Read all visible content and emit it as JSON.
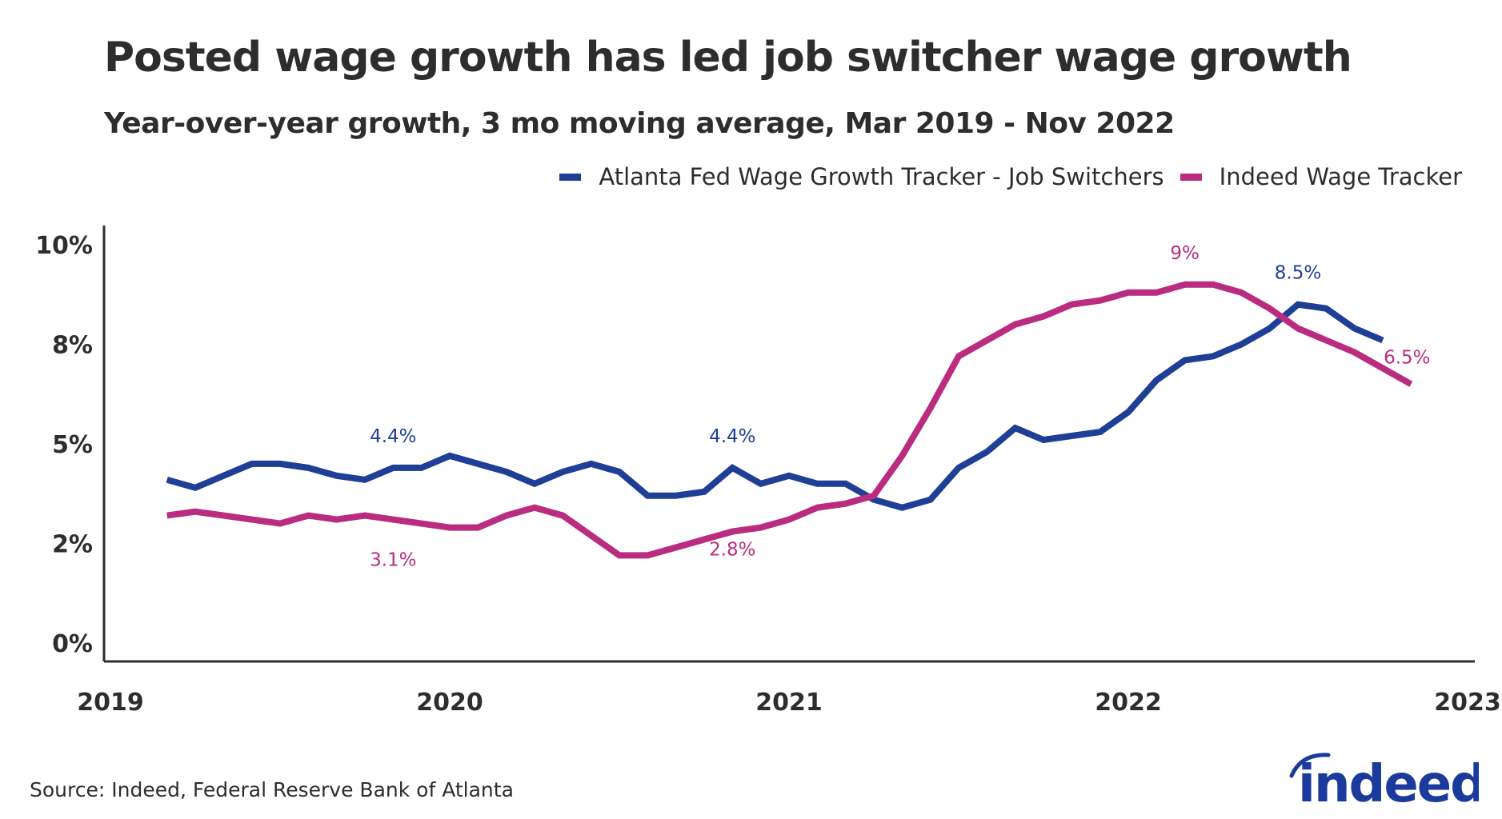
{
  "colors": {
    "atlanta_fed": "#1f3f97",
    "indeed": "#b92c7f",
    "axis": "#2d2d2d",
    "logo": "#1a3a9c"
  },
  "header": {
    "title": "Posted wage growth has led job switcher wage growth",
    "subtitle": "Year-over-year growth, 3 mo moving average, Mar 2019 - Nov 2022"
  },
  "legend": {
    "items": [
      {
        "label": "Atlanta Fed Wage Growth Tracker - Job Switchers",
        "series": "atlanta_fed"
      },
      {
        "label": "Indeed Wage Tracker",
        "series": "indeed"
      }
    ]
  },
  "footer": {
    "source": "Source: Indeed, Federal Reserve Bank of Atlanta",
    "logo_text": "indeed"
  },
  "chart_data": {
    "type": "line",
    "title": "Posted wage growth has led job switcher wage growth",
    "subtitle": "Year-over-year growth, 3 mo moving average, Mar 2019 - Nov 2022",
    "xlabel": "",
    "ylabel": "",
    "xlim": [
      2019.0,
      2023.0
    ],
    "ylim": [
      0,
      10
    ],
    "grid": false,
    "legend_position": "top-right",
    "x_ticks": [
      {
        "value": 2019,
        "label": "2019"
      },
      {
        "value": 2020,
        "label": "2020"
      },
      {
        "value": 2021,
        "label": "2021"
      },
      {
        "value": 2022,
        "label": "2022"
      },
      {
        "value": 2023,
        "label": "2023"
      }
    ],
    "y_ticks": [
      {
        "value": 0,
        "label": "0%"
      },
      {
        "value": 2.5,
        "label": "2%"
      },
      {
        "value": 5,
        "label": "5%"
      },
      {
        "value": 7.5,
        "label": "8%"
      },
      {
        "value": 10,
        "label": "10%"
      }
    ],
    "series": [
      {
        "name": "Atlanta Fed Wage Growth Tracker - Job Switchers",
        "key": "atlanta_fed",
        "start": "2019-03",
        "values": [
          4.1,
          3.9,
          4.2,
          4.5,
          4.5,
          4.4,
          4.2,
          4.1,
          4.4,
          4.4,
          4.7,
          4.5,
          4.3,
          4.0,
          4.3,
          4.5,
          4.3,
          3.7,
          3.7,
          3.8,
          4.4,
          4.0,
          4.2,
          4.0,
          4.0,
          3.6,
          3.4,
          3.6,
          4.4,
          4.8,
          5.4,
          5.1,
          5.2,
          5.3,
          5.8,
          6.6,
          7.1,
          7.2,
          7.5,
          7.9,
          8.5,
          8.4,
          7.9,
          7.6
        ]
      },
      {
        "name": "Indeed Wage Tracker",
        "key": "indeed",
        "start": "2019-03",
        "values": [
          3.2,
          3.3,
          3.2,
          3.1,
          3.0,
          3.2,
          3.1,
          3.2,
          3.1,
          3.0,
          2.9,
          2.9,
          3.2,
          3.4,
          3.2,
          2.7,
          2.2,
          2.2,
          2.4,
          2.6,
          2.8,
          2.9,
          3.1,
          3.4,
          3.5,
          3.7,
          4.7,
          5.9,
          7.2,
          7.6,
          8.0,
          8.2,
          8.5,
          8.6,
          8.8,
          8.8,
          9.0,
          9.0,
          8.8,
          8.4,
          7.9,
          7.6,
          7.3,
          6.9,
          6.5
        ]
      }
    ],
    "annotations": [
      {
        "series": "atlanta_fed",
        "date": "2019-11",
        "label": "4.4%"
      },
      {
        "series": "indeed",
        "date": "2019-11",
        "label": "3.1%",
        "position": "below"
      },
      {
        "series": "atlanta_fed",
        "date": "2020-11",
        "label": "4.4%"
      },
      {
        "series": "indeed",
        "date": "2020-11",
        "label": "2.8%",
        "position": "below-blue"
      },
      {
        "series": "indeed",
        "date": "2022-03",
        "label": "9%"
      },
      {
        "series": "atlanta_fed",
        "date": "2022-07",
        "label": "8.5%"
      },
      {
        "series": "indeed",
        "date": "2022-11",
        "label": "6.5%"
      }
    ]
  }
}
